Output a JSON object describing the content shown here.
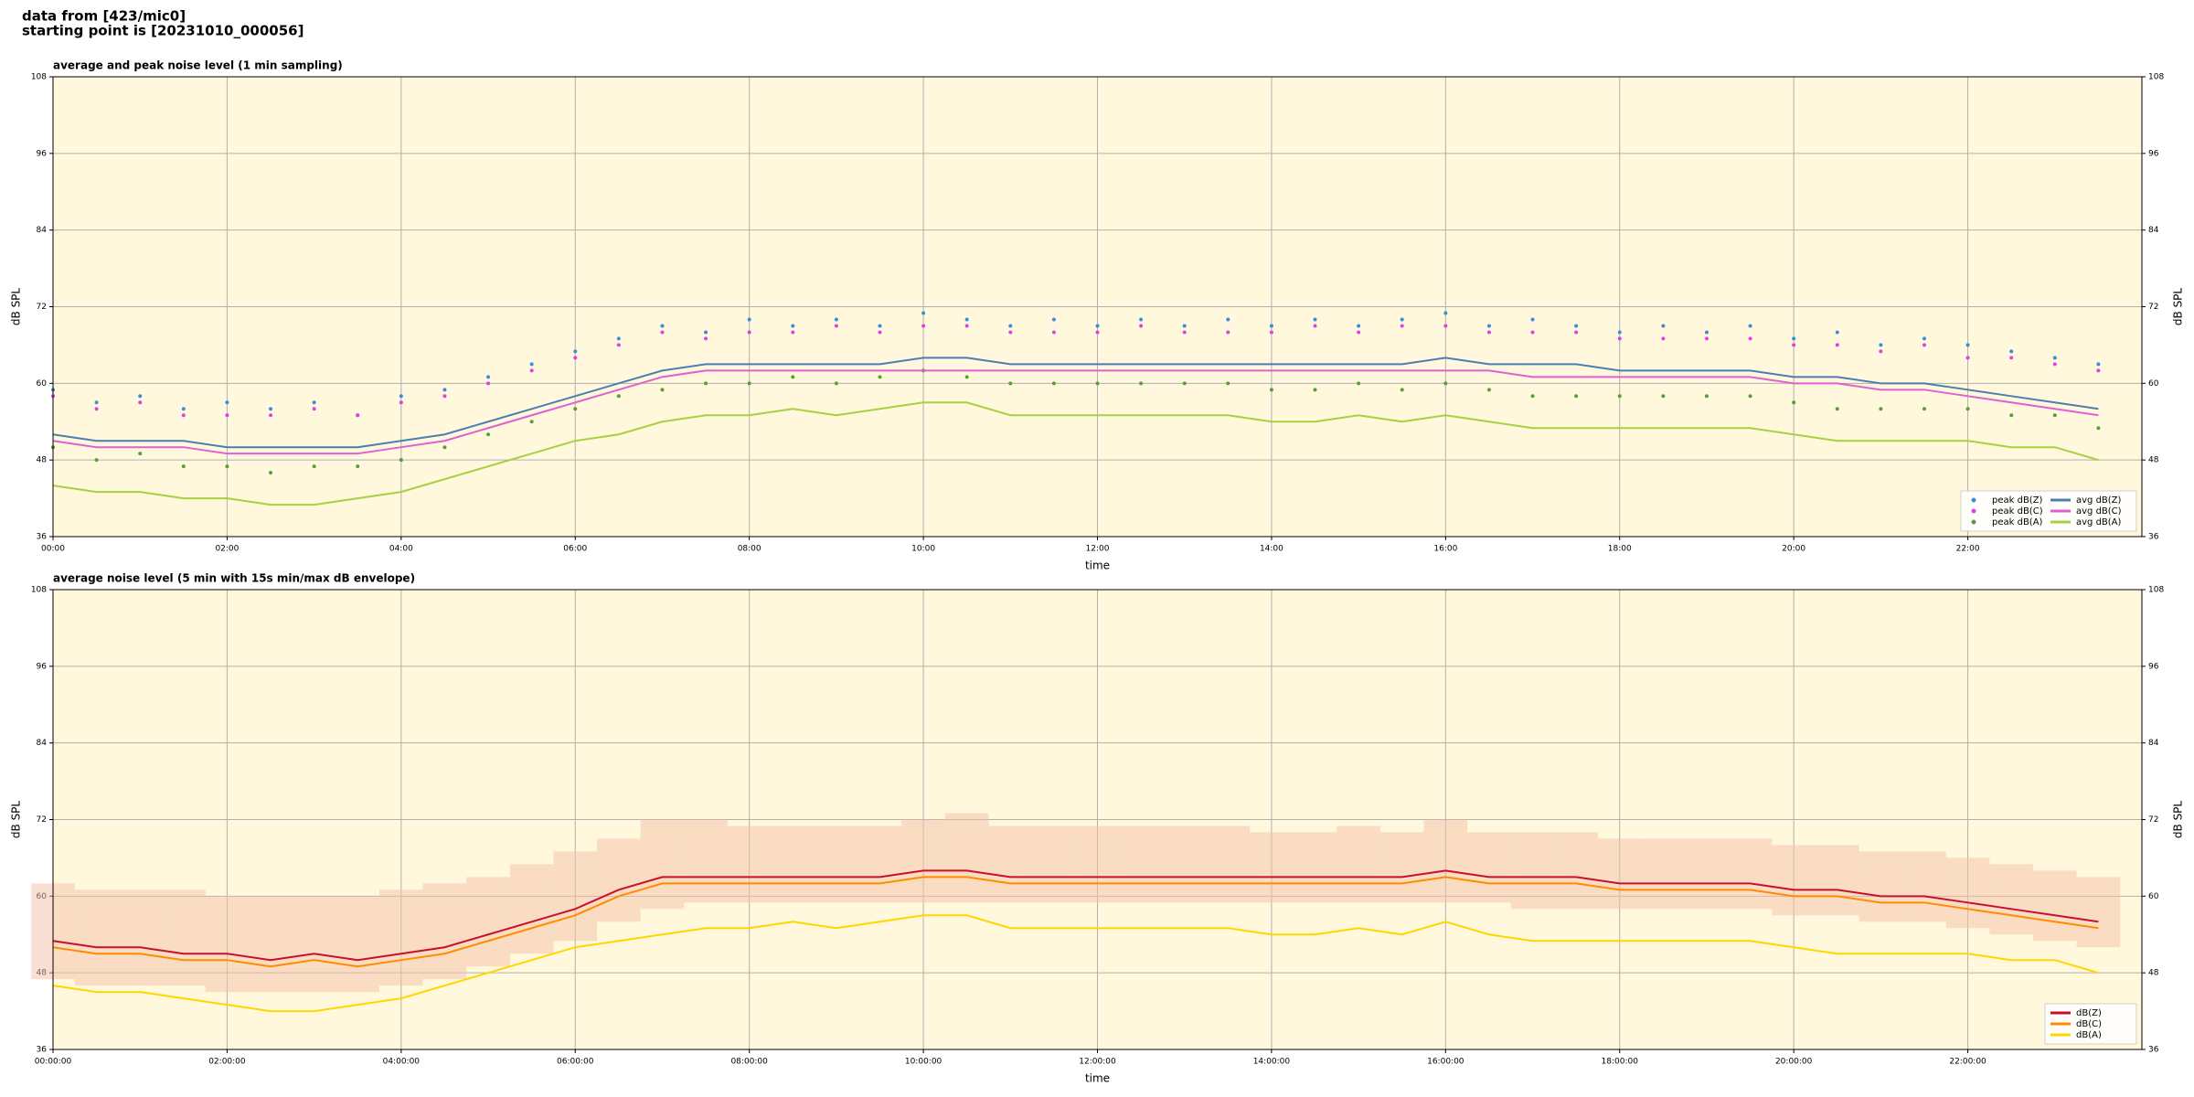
{
  "header": {
    "line1": "data from [423/mic0]",
    "line2": "starting point is [20231010_000056]"
  },
  "chart_data": [
    {
      "type": "scatter-line",
      "title": "average and peak noise level (1 min sampling)",
      "xlabel": "time",
      "ylabel": "dB SPL",
      "x": [
        0,
        0.5,
        1,
        1.5,
        2,
        2.5,
        3,
        3.5,
        4,
        4.5,
        5,
        5.5,
        6,
        6.5,
        7,
        7.5,
        8,
        8.5,
        9,
        9.5,
        10,
        10.5,
        11,
        11.5,
        12,
        12.5,
        13,
        13.5,
        14,
        14.5,
        15,
        15.5,
        16,
        16.5,
        17,
        17.5,
        18,
        18.5,
        19,
        19.5,
        20,
        20.5,
        21,
        21.5,
        22,
        22.5,
        23,
        23.5
      ],
      "xlim": [
        0,
        24
      ],
      "xticks": [
        {
          "value": 0,
          "label": "00:00"
        },
        {
          "value": 2,
          "label": "02:00"
        },
        {
          "value": 4,
          "label": "04:00"
        },
        {
          "value": 6,
          "label": "06:00"
        },
        {
          "value": 8,
          "label": "08:00"
        },
        {
          "value": 10,
          "label": "10:00"
        },
        {
          "value": 12,
          "label": "12:00"
        },
        {
          "value": 14,
          "label": "14:00"
        },
        {
          "value": 16,
          "label": "16:00"
        },
        {
          "value": 18,
          "label": "18:00"
        },
        {
          "value": 20,
          "label": "20:00"
        },
        {
          "value": 22,
          "label": "22:00"
        }
      ],
      "ylim": [
        36,
        108
      ],
      "yticks": [
        36,
        48,
        60,
        72,
        84,
        96,
        108
      ],
      "grid": true,
      "legend": "lower right",
      "series": [
        {
          "name": "peak dB(Z)",
          "kind": "points",
          "color": "#3b8fd6",
          "values": [
            59,
            57,
            58,
            56,
            57,
            56,
            57,
            55,
            58,
            59,
            61,
            63,
            65,
            67,
            69,
            68,
            70,
            69,
            70,
            69,
            71,
            70,
            69,
            70,
            69,
            70,
            69,
            70,
            69,
            70,
            69,
            70,
            71,
            69,
            70,
            69,
            68,
            69,
            68,
            69,
            67,
            68,
            66,
            67,
            66,
            65,
            64,
            63
          ]
        },
        {
          "name": "peak dB(C)",
          "kind": "points",
          "color": "#e040e0",
          "values": [
            58,
            56,
            57,
            55,
            55,
            55,
            56,
            55,
            57,
            58,
            60,
            62,
            64,
            66,
            68,
            67,
            68,
            68,
            69,
            68,
            69,
            69,
            68,
            68,
            68,
            69,
            68,
            68,
            68,
            69,
            68,
            69,
            69,
            68,
            68,
            68,
            67,
            67,
            67,
            67,
            66,
            66,
            65,
            66,
            64,
            64,
            63,
            62
          ]
        },
        {
          "name": "peak dB(A)",
          "kind": "points",
          "color": "#5a9e3a",
          "values": [
            50,
            48,
            49,
            47,
            47,
            46,
            47,
            47,
            48,
            50,
            52,
            54,
            56,
            58,
            59,
            60,
            60,
            61,
            60,
            61,
            62,
            61,
            60,
            60,
            60,
            60,
            60,
            60,
            59,
            59,
            60,
            59,
            60,
            59,
            58,
            58,
            58,
            58,
            58,
            58,
            57,
            56,
            56,
            56,
            56,
            55,
            55,
            53
          ]
        },
        {
          "name": "avg dB(Z)",
          "kind": "line",
          "color": "#4a7fb0",
          "values": [
            52,
            51,
            51,
            51,
            50,
            50,
            50,
            50,
            51,
            52,
            54,
            56,
            58,
            60,
            62,
            63,
            63,
            63,
            63,
            63,
            64,
            64,
            63,
            63,
            63,
            63,
            63,
            63,
            63,
            63,
            63,
            63,
            64,
            63,
            63,
            63,
            62,
            62,
            62,
            62,
            61,
            61,
            60,
            60,
            59,
            58,
            57,
            56
          ]
        },
        {
          "name": "avg dB(C)",
          "kind": "line",
          "color": "#e060d0",
          "values": [
            51,
            50,
            50,
            50,
            49,
            49,
            49,
            49,
            50,
            51,
            53,
            55,
            57,
            59,
            61,
            62,
            62,
            62,
            62,
            62,
            62,
            62,
            62,
            62,
            62,
            62,
            62,
            62,
            62,
            62,
            62,
            62,
            62,
            62,
            61,
            61,
            61,
            61,
            61,
            61,
            60,
            60,
            59,
            59,
            58,
            57,
            56,
            55
          ]
        },
        {
          "name": "avg dB(A)",
          "kind": "line",
          "color": "#a8d040",
          "values": [
            44,
            43,
            43,
            42,
            42,
            41,
            41,
            42,
            43,
            45,
            47,
            49,
            51,
            52,
            54,
            55,
            55,
            56,
            55,
            56,
            57,
            57,
            55,
            55,
            55,
            55,
            55,
            55,
            54,
            54,
            55,
            54,
            55,
            54,
            53,
            53,
            53,
            53,
            53,
            53,
            52,
            51,
            51,
            51,
            51,
            50,
            50,
            48
          ]
        }
      ]
    },
    {
      "type": "line",
      "title": "average noise level (5 min with 15s min/max dB envelope)",
      "xlabel": "time",
      "ylabel": "dB SPL",
      "x": [
        0,
        0.5,
        1,
        1.5,
        2,
        2.5,
        3,
        3.5,
        4,
        4.5,
        5,
        5.5,
        6,
        6.5,
        7,
        7.5,
        8,
        8.5,
        9,
        9.5,
        10,
        10.5,
        11,
        11.5,
        12,
        12.5,
        13,
        13.5,
        14,
        14.5,
        15,
        15.5,
        16,
        16.5,
        17,
        17.5,
        18,
        18.5,
        19,
        19.5,
        20,
        20.5,
        21,
        21.5,
        22,
        22.5,
        23,
        23.5
      ],
      "xlim": [
        0,
        24
      ],
      "xticks": [
        {
          "value": 0,
          "label": "00:00:00"
        },
        {
          "value": 2,
          "label": "02:00:00"
        },
        {
          "value": 4,
          "label": "04:00:00"
        },
        {
          "value": 6,
          "label": "06:00:00"
        },
        {
          "value": 8,
          "label": "08:00:00"
        },
        {
          "value": 10,
          "label": "10:00:00"
        },
        {
          "value": 12,
          "label": "12:00:00"
        },
        {
          "value": 14,
          "label": "14:00:00"
        },
        {
          "value": 16,
          "label": "16:00:00"
        },
        {
          "value": 18,
          "label": "18:00:00"
        },
        {
          "value": 20,
          "label": "20:00:00"
        },
        {
          "value": 22,
          "label": "22:00:00"
        }
      ],
      "ylim": [
        36,
        108
      ],
      "yticks": [
        36,
        48,
        60,
        72,
        84,
        96,
        108
      ],
      "grid": true,
      "legend": "lower right",
      "envelope": {
        "color": "#f4c0a8",
        "min": [
          47,
          46,
          46,
          46,
          45,
          45,
          45,
          45,
          46,
          47,
          49,
          51,
          53,
          56,
          58,
          59,
          59,
          59,
          59,
          59,
          59,
          59,
          59,
          59,
          59,
          59,
          59,
          59,
          59,
          59,
          59,
          59,
          59,
          59,
          58,
          58,
          58,
          58,
          58,
          58,
          57,
          57,
          56,
          56,
          55,
          54,
          53,
          52
        ],
        "max": [
          62,
          61,
          61,
          61,
          60,
          60,
          60,
          60,
          61,
          62,
          63,
          65,
          67,
          69,
          72,
          72,
          71,
          71,
          71,
          71,
          72,
          73,
          71,
          71,
          71,
          71,
          71,
          71,
          70,
          70,
          71,
          70,
          72,
          70,
          70,
          70,
          69,
          69,
          69,
          69,
          68,
          68,
          67,
          67,
          66,
          65,
          64,
          63
        ]
      },
      "series": [
        {
          "name": "dB(Z)",
          "kind": "line",
          "color": "#c8102e",
          "values": [
            53,
            52,
            52,
            51,
            51,
            50,
            51,
            50,
            51,
            52,
            54,
            56,
            58,
            61,
            63,
            63,
            63,
            63,
            63,
            63,
            64,
            64,
            63,
            63,
            63,
            63,
            63,
            63,
            63,
            63,
            63,
            63,
            64,
            63,
            63,
            63,
            62,
            62,
            62,
            62,
            61,
            61,
            60,
            60,
            59,
            58,
            57,
            56
          ]
        },
        {
          "name": "dB(C)",
          "kind": "line",
          "color": "#ff8c00",
          "values": [
            52,
            51,
            51,
            50,
            50,
            49,
            50,
            49,
            50,
            51,
            53,
            55,
            57,
            60,
            62,
            62,
            62,
            62,
            62,
            62,
            63,
            63,
            62,
            62,
            62,
            62,
            62,
            62,
            62,
            62,
            62,
            62,
            63,
            62,
            62,
            62,
            61,
            61,
            61,
            61,
            60,
            60,
            59,
            59,
            58,
            57,
            56,
            55
          ]
        },
        {
          "name": "dB(A)",
          "kind": "line",
          "color": "#ffd700",
          "values": [
            46,
            45,
            45,
            44,
            43,
            42,
            42,
            43,
            44,
            46,
            48,
            50,
            52,
            53,
            54,
            55,
            55,
            56,
            55,
            56,
            57,
            57,
            55,
            55,
            55,
            55,
            55,
            55,
            54,
            54,
            55,
            54,
            56,
            54,
            53,
            53,
            53,
            53,
            53,
            53,
            52,
            51,
            51,
            51,
            51,
            50,
            50,
            48
          ]
        }
      ]
    }
  ]
}
